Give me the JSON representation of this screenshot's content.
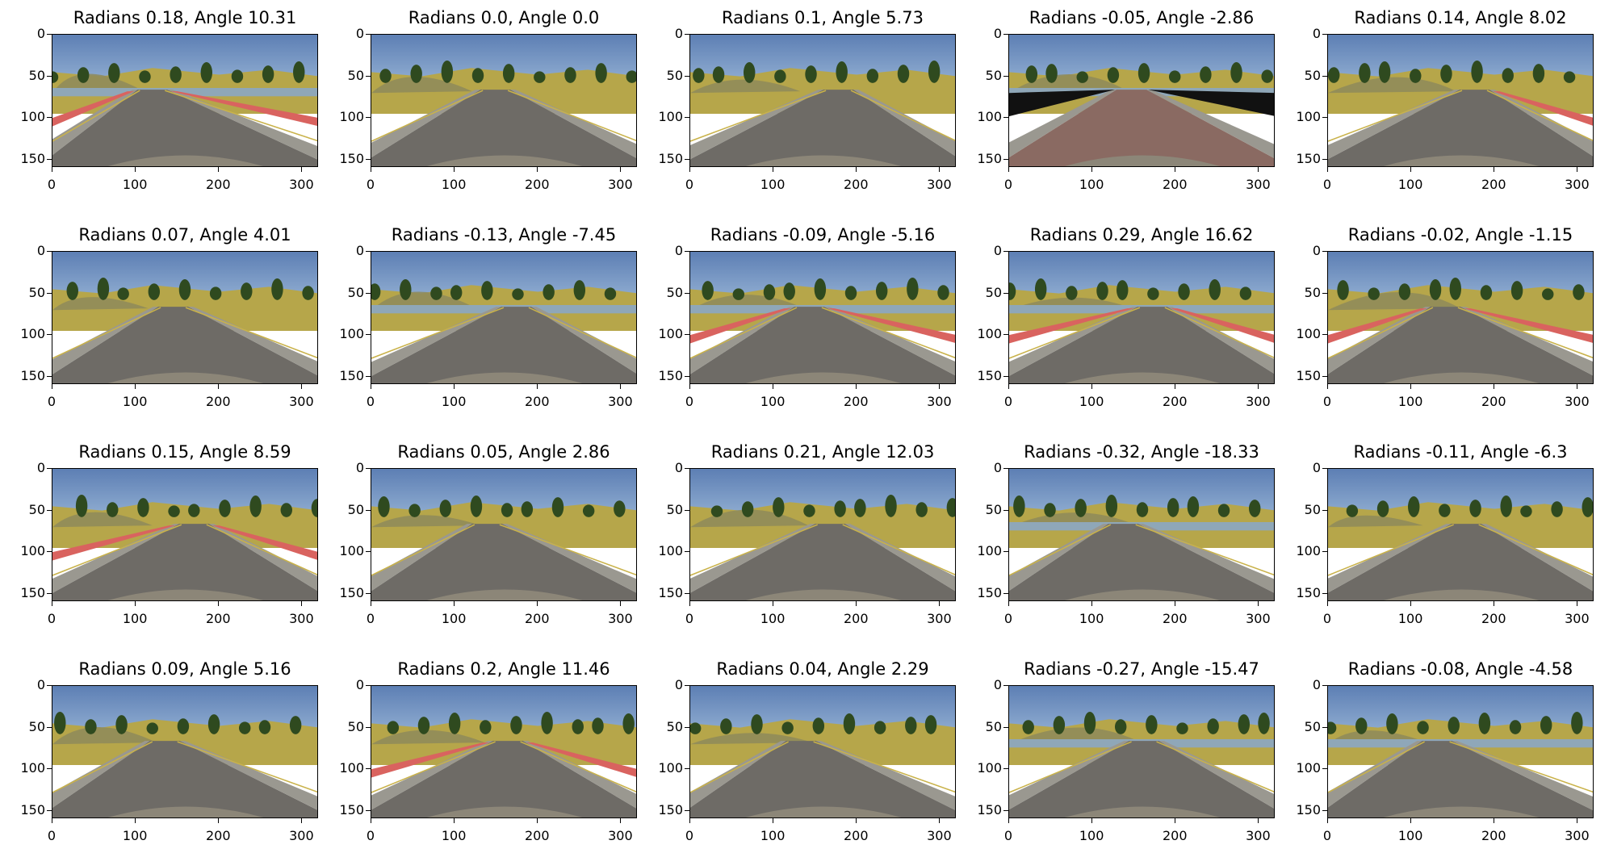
{
  "figure": {
    "y_ticks": [
      "0",
      "50",
      "100",
      "150"
    ],
    "x_ticks": [
      "0",
      "100",
      "200",
      "300"
    ],
    "y_tick_values": [
      0,
      50,
      100,
      150
    ],
    "x_tick_values": [
      0,
      100,
      200,
      300
    ],
    "image_extent": {
      "width": 320,
      "height": 160
    },
    "panels": [
      {
        "title": "Radians 0.18, Angle 10.31",
        "road": "asphalt",
        "curb_left": true,
        "curb_right": true,
        "water": true
      },
      {
        "title": "Radians 0.0, Angle 0.0",
        "road": "asphalt",
        "curb_left": false,
        "curb_right": false,
        "water": false
      },
      {
        "title": "Radians 0.1, Angle 5.73",
        "road": "asphalt",
        "curb_left": false,
        "curb_right": false,
        "water": false
      },
      {
        "title": "Radians -0.05, Angle -2.86",
        "road": "bridge",
        "curb_left": false,
        "curb_right": false,
        "water": true
      },
      {
        "title": "Radians 0.14, Angle 8.02",
        "road": "asphalt",
        "curb_left": false,
        "curb_right": true,
        "water": false
      },
      {
        "title": "Radians 0.07, Angle 4.01",
        "road": "asphalt",
        "curb_left": false,
        "curb_right": false,
        "water": false
      },
      {
        "title": "Radians -0.13, Angle -7.45",
        "road": "asphalt",
        "curb_left": false,
        "curb_right": false,
        "water": true
      },
      {
        "title": "Radians -0.09, Angle -5.16",
        "road": "asphalt",
        "curb_left": true,
        "curb_right": true,
        "water": true
      },
      {
        "title": "Radians 0.29, Angle 16.62",
        "road": "asphalt",
        "curb_left": true,
        "curb_right": true,
        "water": true
      },
      {
        "title": "Radians -0.02, Angle -1.15",
        "road": "asphalt",
        "curb_left": true,
        "curb_right": true,
        "water": false
      },
      {
        "title": "Radians 0.15, Angle 8.59",
        "road": "asphalt",
        "curb_left": true,
        "curb_right": true,
        "water": false
      },
      {
        "title": "Radians 0.05, Angle 2.86",
        "road": "asphalt",
        "curb_left": false,
        "curb_right": false,
        "water": false
      },
      {
        "title": "Radians 0.21, Angle 12.03",
        "road": "asphalt",
        "curb_left": false,
        "curb_right": false,
        "water": false
      },
      {
        "title": "Radians -0.32, Angle -18.33",
        "road": "asphalt",
        "curb_left": false,
        "curb_right": false,
        "water": true
      },
      {
        "title": "Radians -0.11, Angle -6.3",
        "road": "asphalt",
        "curb_left": false,
        "curb_right": false,
        "water": false
      },
      {
        "title": "Radians 0.09, Angle 5.16",
        "road": "asphalt",
        "curb_left": false,
        "curb_right": false,
        "water": false
      },
      {
        "title": "Radians 0.2, Angle 11.46",
        "road": "asphalt",
        "curb_left": true,
        "curb_right": true,
        "water": false
      },
      {
        "title": "Radians 0.04, Angle 2.29",
        "road": "asphalt",
        "curb_left": false,
        "curb_right": false,
        "water": false
      },
      {
        "title": "Radians -0.27, Angle -15.47",
        "road": "asphalt",
        "curb_left": false,
        "curb_right": false,
        "water": true
      },
      {
        "title": "Radians -0.08, Angle -4.58",
        "road": "asphalt",
        "curb_left": false,
        "curb_right": false,
        "water": true
      }
    ]
  },
  "colors": {
    "sky": "#9cb8d8",
    "sky_top": "#5d7fb4",
    "grass": "#b6a64a",
    "trees": "#2f4a1f",
    "road": "#6e6b66",
    "road_edge": "#9a9890",
    "lane_line": "#c9b24a",
    "curb_red": "#d9635f",
    "curb_white": "#eeeeee",
    "water": "#8fa7b8",
    "bridge": "#8a6a62",
    "hood": "#8c8678"
  }
}
